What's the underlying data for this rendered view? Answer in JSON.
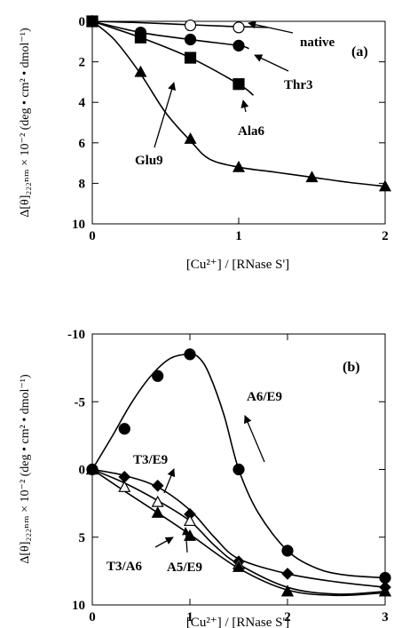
{
  "chart_data": [
    {
      "type": "scatter",
      "panel_label": "(a)",
      "xlabel": "[Cu²⁺] / [RNase S']",
      "ylabel": "Δ[θ]₂₂₂ₙₘ × 10⁻² (deg • cm² • dmol⁻¹)",
      "xlim": [
        0,
        2
      ],
      "ylim": [
        10,
        0
      ],
      "y_inverted": true,
      "xticks": [
        "0",
        "1",
        "2"
      ],
      "yticks": [
        "0",
        "2",
        "4",
        "6",
        "8",
        "10"
      ],
      "grid": false,
      "legend": "none",
      "series": [
        {
          "name": "native",
          "marker": "circle-open",
          "x": [
            0,
            0.67,
            1.0
          ],
          "y": [
            0,
            0.2,
            0.3
          ],
          "curve_x": [
            0,
            0.3,
            0.6,
            0.9,
            1.2
          ],
          "curve_y": [
            0,
            0.06,
            0.15,
            0.24,
            0.3
          ]
        },
        {
          "name": "Thr3",
          "marker": "circle-filled",
          "x": [
            0,
            0.33,
            0.67,
            1.0
          ],
          "y": [
            0,
            0.55,
            0.9,
            1.2
          ],
          "curve_x": [
            0,
            0.33,
            0.67,
            1.0,
            1.07
          ],
          "curve_y": [
            0,
            0.55,
            0.9,
            1.2,
            1.35
          ]
        },
        {
          "name": "Ala6",
          "marker": "square-filled",
          "x": [
            0,
            0.33,
            0.67,
            1.0
          ],
          "y": [
            0,
            0.8,
            1.8,
            3.1
          ],
          "curve_x": [
            0,
            0.33,
            0.67,
            1.0,
            1.1
          ],
          "curve_y": [
            0,
            0.8,
            1.8,
            3.1,
            3.65
          ]
        },
        {
          "name": "Glu9",
          "marker": "triangle-filled",
          "x": [
            0,
            0.33,
            0.67,
            1.0,
            1.5,
            2.0
          ],
          "y": [
            0,
            2.5,
            5.8,
            7.2,
            7.7,
            8.15
          ],
          "curve_x": [
            0,
            0.15,
            0.33,
            0.5,
            0.67,
            0.8,
            1.0,
            1.25,
            1.5,
            1.75,
            2.0
          ],
          "curve_y": [
            0,
            0.9,
            2.6,
            4.5,
            5.9,
            6.8,
            7.2,
            7.45,
            7.7,
            7.95,
            8.15
          ]
        }
      ]
    },
    {
      "type": "scatter",
      "panel_label": "(b)",
      "xlabel": "[Cu²⁺] / [RNase S']",
      "ylabel": "Δ[θ]₂₂₂ₙₘ × 10⁻² (deg • cm² • dmol⁻¹)",
      "xlim": [
        0,
        3
      ],
      "ylim": [
        10,
        -10
      ],
      "y_inverted": true,
      "xticks": [
        "0",
        "1",
        "2",
        "3"
      ],
      "yticks": [
        "-10",
        "-5",
        "0",
        "5",
        "10"
      ],
      "grid": false,
      "legend": "none",
      "series": [
        {
          "name": "A6/E9",
          "marker": "circle-filled",
          "x": [
            0,
            0.33,
            0.67,
            1.0,
            1.5,
            2.0,
            3.0
          ],
          "y": [
            0,
            -3.0,
            -6.9,
            -8.5,
            0,
            6.0,
            8.0
          ],
          "curve_x": [
            0,
            0.2,
            0.4,
            0.6,
            0.8,
            1.0,
            1.1,
            1.2,
            1.35,
            1.5,
            1.7,
            2.0,
            2.3,
            2.6,
            3.0
          ],
          "curve_y": [
            0,
            -2.4,
            -4.9,
            -6.9,
            -8.2,
            -8.5,
            -8.2,
            -7.0,
            -4.0,
            0,
            3.2,
            6.0,
            7.3,
            7.8,
            8.0
          ]
        },
        {
          "name": "T3/E9",
          "marker": "diamond-filled",
          "x": [
            0,
            0.33,
            0.67,
            1.0,
            1.5,
            2.0,
            3.0
          ],
          "y": [
            0,
            0.55,
            1.2,
            3.3,
            6.8,
            7.7,
            8.7
          ],
          "curve_x": [
            0,
            0.33,
            0.67,
            1.0,
            1.25,
            1.5,
            2.0,
            2.5,
            3.0
          ],
          "curve_y": [
            0,
            0.45,
            1.3,
            3.0,
            5.0,
            6.6,
            7.7,
            8.3,
            8.7
          ]
        },
        {
          "name": "A5/E9",
          "marker": "triangle-open",
          "x": [
            0,
            0.33,
            0.67,
            1.0,
            1.5,
            2.0,
            3.0
          ],
          "y": [
            0,
            1.3,
            2.4,
            3.8,
            7.0,
            9.0,
            9.0
          ],
          "curve_x": [
            0,
            0.33,
            0.67,
            1.0,
            1.25,
            1.5,
            2.0,
            2.5,
            3.0
          ],
          "curve_y": [
            0,
            1.0,
            2.3,
            3.8,
            5.6,
            7.0,
            8.7,
            9.2,
            9.0
          ]
        },
        {
          "name": "T3/A6",
          "marker": "triangle-filled",
          "x": [
            0,
            0.67,
            1.0,
            1.5,
            2.0,
            3.0
          ],
          "y": [
            0,
            3.2,
            4.9,
            7.2,
            9.0,
            9.0
          ],
          "curve_x": [
            0,
            0.33,
            0.67,
            1.0,
            1.5,
            2.0,
            2.5,
            3.0
          ],
          "curve_y": [
            0,
            1.6,
            3.2,
            4.8,
            7.3,
            8.9,
            9.3,
            9.1
          ]
        }
      ]
    }
  ]
}
